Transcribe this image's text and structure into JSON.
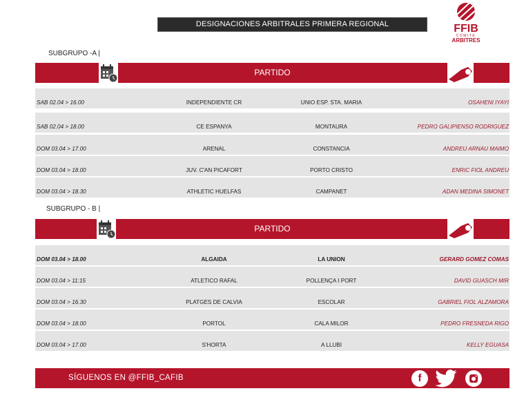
{
  "title": "DESIGNACIONES ARBITRALES PRIMERA REGIONAL",
  "logo": {
    "text": "FFIB",
    "sub1": "COMITÉ",
    "sub2": "ARBITRES"
  },
  "colors": {
    "accent": "#b5152b",
    "title_bar": "#2b2b2b",
    "row_bg": "#e4e4e4",
    "referee_text": "#9b1b2b"
  },
  "groups": [
    {
      "label": "SUBGRUPO -A |",
      "header": "PARTIDO",
      "header_icons": [
        "calendar-clock-icon",
        "whistle-icon"
      ],
      "rows": [
        {
          "date": "SAB 02.04 > 16.00",
          "home": "INDEPENDIENTE CR",
          "away": "UNIO ESP. STA. MARIA",
          "referee": "OSAHENI IYAYI"
        },
        {
          "date": "SAB 02.04 > 18.00",
          "home": "CE ESPANYA",
          "away": "MONTAURA",
          "referee": "PEDRO GALIPIENSO RODRIGUEZ"
        },
        {
          "date": "DOM 03.04 > 17.00",
          "home": "ARENAL",
          "away": "CONSTANCIA",
          "referee": "ANDREU ARNAU MAIMO"
        },
        {
          "date": "DOM 03.04 > 18.00",
          "home": "JUV. C'AN PICAFORT",
          "away": "PORTO CRISTO",
          "referee": "ENRIC FIOL  ANDREU"
        },
        {
          "date": "DOM 03.04 > 18.30",
          "home": "ATHLETIC HUELFAS",
          "away": "CAMPANET",
          "referee": "ADAN MEDINA SIMONET"
        }
      ]
    },
    {
      "label": "SUBGRUPO - B |",
      "header": "PARTIDO",
      "header_icons": [
        "calendar-clock-icon",
        "whistle-icon"
      ],
      "rows": [
        {
          "date": "DOM 03.04 > 18.00",
          "home": "ALGAIDA",
          "away": "LA UNION",
          "referee": "GERARD GOMEZ COMAS",
          "bold": true
        },
        {
          "date": "DOM 03.04 > 11:15",
          "home": "ATLETICO RAFAL",
          "away": "POLLENÇA I PORT",
          "referee": "DAVID GUASCH MIR"
        },
        {
          "date": "DOM 03.04 > 16.30",
          "home": "PLATGES DE CALVIA",
          "away": "ESCOLAR",
          "referee": "GABRIEL FIOL ALZAMORA"
        },
        {
          "date": "DOM 03.04 > 18.00",
          "home": "PORTOL",
          "away": "CALA MILOR",
          "referee": "PEDRO FRESNEDA RIGO"
        },
        {
          "date": "DOM 03.04 > 17.00",
          "home": "S'HORTA",
          "away": "A LLUBI",
          "referee": "KELLY EGUASA"
        }
      ]
    }
  ],
  "footer": {
    "text": "SÍGUENOS EN @FFIB_CAFIB",
    "social": [
      "facebook-icon",
      "twitter-icon",
      "instagram-icon"
    ]
  }
}
